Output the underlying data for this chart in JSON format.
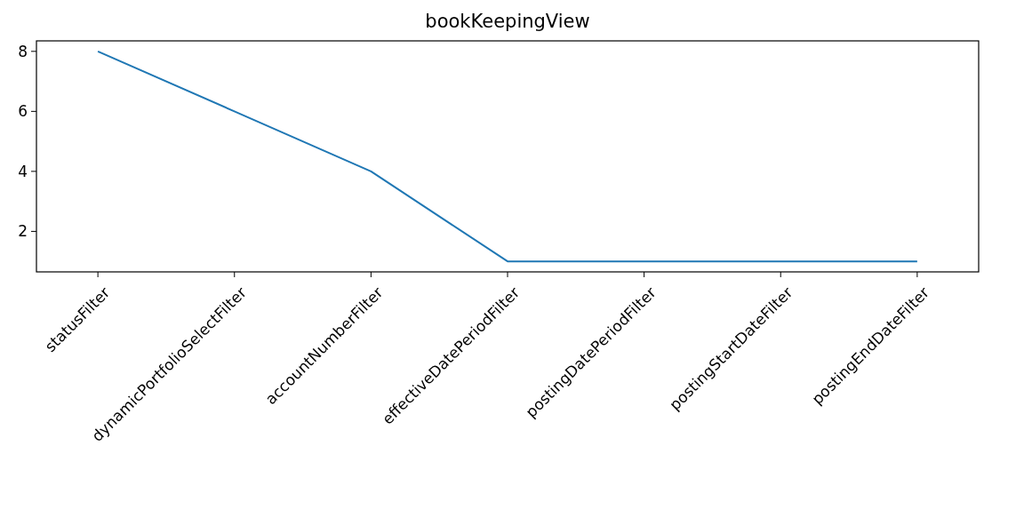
{
  "chart_data": {
    "type": "line",
    "title": "bookKeepingView",
    "categories": [
      "statusFilter",
      "dynamicPortfolioSelectFilter",
      "accountNumberFilter",
      "effectiveDatePeriodFilter",
      "postingDatePeriodFilter",
      "postingStartDateFilter",
      "postingEndDateFilter"
    ],
    "series": [
      {
        "color": "#1f77b4",
        "values": [
          8,
          6,
          4,
          1,
          1,
          1,
          1
        ]
      }
    ],
    "ylim": [
      0.65,
      8.35
    ],
    "yticks": [
      2,
      4,
      6,
      8
    ],
    "grid": false
  }
}
